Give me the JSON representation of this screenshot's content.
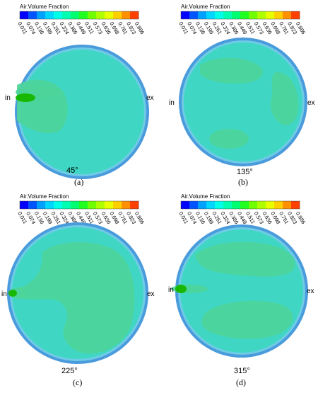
{
  "legend": {
    "title": "Air.Volume Fraction",
    "ticks": [
      "0.011",
      "0.074",
      "0.136",
      "0.199",
      "0.261",
      "0.324",
      "0.386",
      "0.449",
      "0.511",
      "0.573",
      "0.636",
      "0.698",
      "0.761",
      "0.823",
      "0.886"
    ],
    "colors": [
      "#0000ff",
      "#0055ff",
      "#00a0ff",
      "#00d6ff",
      "#00ffe8",
      "#00ffb0",
      "#00ff70",
      "#20ff20",
      "#70ff00",
      "#b0ff00",
      "#e8ff00",
      "#ffd000",
      "#ff9000",
      "#ff4000"
    ]
  },
  "colors": {
    "disc_fill": "#3fd7c4",
    "disc_rim": "#4a9bdc",
    "disc_rim_inner": "#6fcbe6",
    "high_region": "#4ed49a",
    "inlet_core": "#19b800"
  },
  "labels": {
    "inlet": "in",
    "outlet": "ex"
  },
  "panels": [
    {
      "caption": "(a)",
      "angle": "45°"
    },
    {
      "caption": "(b)",
      "angle": "135°"
    },
    {
      "caption": "(c)",
      "angle": "225°"
    },
    {
      "caption": "(d)",
      "angle": "315°"
    }
  ]
}
